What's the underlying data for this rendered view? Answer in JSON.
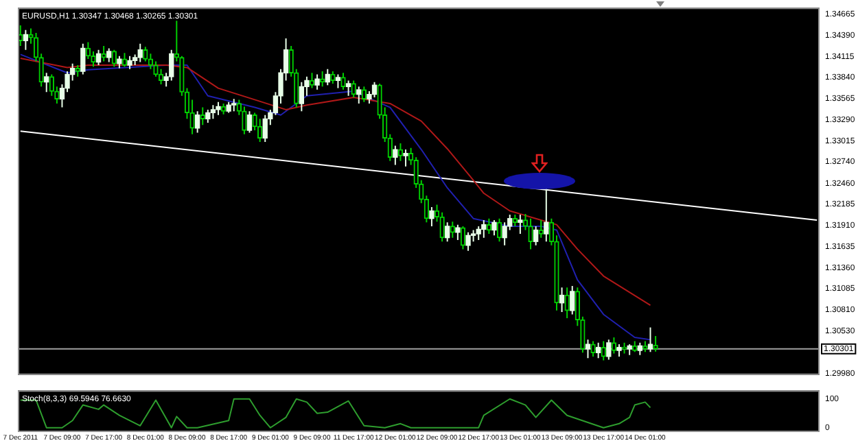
{
  "chart_data": [
    {
      "type": "candlestick",
      "title": "EURUSD,H1 1.30347 1.30468 1.30265 1.30301",
      "tick_labels": "y",
      "legend": false,
      "grid": false,
      "ylim": [
        1.2996,
        1.3475
      ],
      "yticks": [
        1.34665,
        {
          "value": 1.3439,
          "label": "1.34390"
        },
        1.34115,
        {
          "value": 1.3384,
          "label": "1.33840"
        },
        1.33565,
        {
          "value": 1.3329,
          "label": "1.33290"
        },
        1.33015,
        {
          "value": 1.3274,
          "label": "1.32740"
        },
        {
          "value": 1.3246,
          "label": "1.32460"
        },
        1.32185,
        {
          "value": 1.3191,
          "label": "1.31910"
        },
        1.31635,
        {
          "value": 1.3136,
          "label": "1.31360"
        },
        1.31085,
        {
          "value": 1.3081,
          "label": "1.30810"
        },
        {
          "value": 1.3053,
          "label": "1.30530"
        },
        {
          "value": 1.2998,
          "label": "1.29980"
        }
      ],
      "ohlc": [
        [
          1.344,
          1.3452,
          1.3425,
          1.3432
        ],
        [
          1.3432,
          1.3446,
          1.342,
          1.344
        ],
        [
          1.344,
          1.3448,
          1.3428,
          1.3436
        ],
        [
          1.3436,
          1.3442,
          1.3405,
          1.341
        ],
        [
          1.341,
          1.3415,
          1.3372,
          1.3378
        ],
        [
          1.3378,
          1.339,
          1.3365,
          1.3385
        ],
        [
          1.3385,
          1.3388,
          1.336,
          1.3366
        ],
        [
          1.3366,
          1.3372,
          1.335,
          1.3356
        ],
        [
          1.3356,
          1.3375,
          1.3345,
          1.337
        ],
        [
          1.337,
          1.3392,
          1.3365,
          1.3388
        ],
        [
          1.3388,
          1.3402,
          1.338,
          1.3396
        ],
        [
          1.3396,
          1.34,
          1.3385,
          1.3392
        ],
        [
          1.3392,
          1.3428,
          1.3388,
          1.3422
        ],
        [
          1.3422,
          1.343,
          1.3408,
          1.3412
        ],
        [
          1.3412,
          1.3418,
          1.3398,
          1.3404
        ],
        [
          1.3404,
          1.342,
          1.34,
          1.3415
        ],
        [
          1.3415,
          1.3425,
          1.3405,
          1.341
        ],
        [
          1.341,
          1.3422,
          1.3404,
          1.3418
        ],
        [
          1.3418,
          1.342,
          1.3398,
          1.3402
        ],
        [
          1.3402,
          1.3412,
          1.3396,
          1.3408
        ],
        [
          1.3408,
          1.3416,
          1.3398,
          1.34
        ],
        [
          1.34,
          1.3412,
          1.3395,
          1.3406
        ],
        [
          1.3406,
          1.3414,
          1.34,
          1.341
        ],
        [
          1.341,
          1.3428,
          1.3404,
          1.342
        ],
        [
          1.342,
          1.3424,
          1.3405,
          1.3408
        ],
        [
          1.3408,
          1.3415,
          1.3395,
          1.34
        ],
        [
          1.34,
          1.3405,
          1.3385,
          1.3388
        ],
        [
          1.3388,
          1.3395,
          1.3375,
          1.338
        ],
        [
          1.338,
          1.339,
          1.3372,
          1.3385
        ],
        [
          1.3385,
          1.342,
          1.338,
          1.3415
        ],
        [
          1.3415,
          1.3458,
          1.3405,
          1.341
        ],
        [
          1.341,
          1.3412,
          1.336,
          1.3365
        ],
        [
          1.3365,
          1.337,
          1.333,
          1.3338
        ],
        [
          1.3338,
          1.3355,
          1.331,
          1.3318
        ],
        [
          1.3318,
          1.334,
          1.3312,
          1.3335
        ],
        [
          1.3335,
          1.3345,
          1.3322,
          1.333
        ],
        [
          1.333,
          1.3342,
          1.3325,
          1.3338
        ],
        [
          1.3338,
          1.3348,
          1.333,
          1.3342
        ],
        [
          1.3342,
          1.3352,
          1.3335,
          1.3346
        ],
        [
          1.3346,
          1.335,
          1.3336,
          1.334
        ],
        [
          1.334,
          1.3352,
          1.3338,
          1.3348
        ],
        [
          1.3348,
          1.3356,
          1.334,
          1.335
        ],
        [
          1.335,
          1.3355,
          1.3335,
          1.334
        ],
        [
          1.334,
          1.3346,
          1.331,
          1.3315
        ],
        [
          1.3315,
          1.334,
          1.3312,
          1.3335
        ],
        [
          1.3335,
          1.3338,
          1.3315,
          1.332
        ],
        [
          1.332,
          1.333,
          1.33,
          1.3305
        ],
        [
          1.3305,
          1.3335,
          1.33,
          1.333
        ],
        [
          1.333,
          1.3342,
          1.3322,
          1.3338
        ],
        [
          1.3338,
          1.3365,
          1.3335,
          1.336
        ],
        [
          1.336,
          1.3395,
          1.335,
          1.339
        ],
        [
          1.339,
          1.3435,
          1.338,
          1.342
        ],
        [
          1.342,
          1.3425,
          1.3385,
          1.339
        ],
        [
          1.339,
          1.3395,
          1.3345,
          1.335
        ],
        [
          1.335,
          1.3378,
          1.334,
          1.3372
        ],
        [
          1.3372,
          1.3385,
          1.336,
          1.338
        ],
        [
          1.338,
          1.339,
          1.337,
          1.3374
        ],
        [
          1.3374,
          1.3388,
          1.3368,
          1.3382
        ],
        [
          1.3382,
          1.3392,
          1.3372,
          1.3378
        ],
        [
          1.3378,
          1.3395,
          1.3374,
          1.3388
        ],
        [
          1.3388,
          1.3392,
          1.3376,
          1.338
        ],
        [
          1.338,
          1.3388,
          1.337,
          1.3384
        ],
        [
          1.3384,
          1.339,
          1.3368,
          1.3372
        ],
        [
          1.3372,
          1.338,
          1.336,
          1.3376
        ],
        [
          1.3376,
          1.338,
          1.3358,
          1.3362
        ],
        [
          1.3362,
          1.3372,
          1.335,
          1.3368
        ],
        [
          1.3368,
          1.3372,
          1.3352,
          1.3356
        ],
        [
          1.3356,
          1.3366,
          1.335,
          1.3362
        ],
        [
          1.3362,
          1.3378,
          1.3358,
          1.3374
        ],
        [
          1.3374,
          1.3376,
          1.333,
          1.3335
        ],
        [
          1.3335,
          1.3345,
          1.33,
          1.3305
        ],
        [
          1.3305,
          1.331,
          1.3275,
          1.328
        ],
        [
          1.328,
          1.3295,
          1.327,
          1.329
        ],
        [
          1.329,
          1.3298,
          1.3275,
          1.3282
        ],
        [
          1.3282,
          1.329,
          1.3268,
          1.3285
        ],
        [
          1.3285,
          1.3292,
          1.327,
          1.3276
        ],
        [
          1.3276,
          1.328,
          1.324,
          1.3245
        ],
        [
          1.3245,
          1.325,
          1.322,
          1.3225
        ],
        [
          1.3225,
          1.323,
          1.3195,
          1.32
        ],
        [
          1.32,
          1.3215,
          1.319,
          1.321
        ],
        [
          1.321,
          1.3218,
          1.3196,
          1.3202
        ],
        [
          1.3202,
          1.3208,
          1.317,
          1.3175
        ],
        [
          1.3175,
          1.3195,
          1.317,
          1.319
        ],
        [
          1.319,
          1.3196,
          1.3175,
          1.3182
        ],
        [
          1.3182,
          1.3192,
          1.3172,
          1.3188
        ],
        [
          1.3188,
          1.319,
          1.316,
          1.3165
        ],
        [
          1.3165,
          1.3182,
          1.3158,
          1.3178
        ],
        [
          1.3178,
          1.3185,
          1.317,
          1.318
        ],
        [
          1.318,
          1.319,
          1.3172,
          1.3186
        ],
        [
          1.3186,
          1.3198,
          1.3175,
          1.3192
        ],
        [
          1.3192,
          1.32,
          1.318,
          1.3185
        ],
        [
          1.3185,
          1.3198,
          1.3178,
          1.3195
        ],
        [
          1.3195,
          1.32,
          1.317,
          1.3175
        ],
        [
          1.3175,
          1.3195,
          1.3165,
          1.319
        ],
        [
          1.319,
          1.3205,
          1.3185,
          1.32
        ],
        [
          1.32,
          1.3205,
          1.319,
          1.3195
        ],
        [
          1.3195,
          1.3205,
          1.318,
          1.3198
        ],
        [
          1.3198,
          1.3206,
          1.3185,
          1.319
        ],
        [
          1.319,
          1.32,
          1.316,
          1.317
        ],
        [
          1.317,
          1.319,
          1.3165,
          1.3185
        ],
        [
          1.3185,
          1.3198,
          1.3175,
          1.318
        ],
        [
          1.318,
          1.324,
          1.317,
          1.3195
        ],
        [
          1.3195,
          1.32,
          1.3165,
          1.317
        ],
        [
          1.317,
          1.3178,
          1.308,
          1.309
        ],
        [
          1.309,
          1.311,
          1.3078,
          1.31
        ],
        [
          1.31,
          1.311,
          1.307,
          1.308
        ],
        [
          1.308,
          1.3112,
          1.3075,
          1.3105
        ],
        [
          1.3105,
          1.311,
          1.306,
          1.3068
        ],
        [
          1.3068,
          1.3072,
          1.3025,
          1.303
        ],
        [
          1.303,
          1.3042,
          1.3018,
          1.3036
        ],
        [
          1.3036,
          1.304,
          1.302,
          1.3025
        ],
        [
          1.3025,
          1.3038,
          1.3018,
          1.3032
        ],
        [
          1.3032,
          1.304,
          1.3015,
          1.302
        ],
        [
          1.302,
          1.3042,
          1.3016,
          1.3038
        ],
        [
          1.3038,
          1.3045,
          1.3024,
          1.3028
        ],
        [
          1.3028,
          1.3036,
          1.302,
          1.3032
        ],
        [
          1.3032,
          1.3038,
          1.3024,
          1.303
        ],
        [
          1.303,
          1.3036,
          1.3022,
          1.3034
        ],
        [
          1.3034,
          1.304,
          1.3026,
          1.3028
        ],
        [
          1.3028,
          1.3038,
          1.3022,
          1.3034
        ],
        [
          1.3034,
          1.304,
          1.3026,
          1.303
        ],
        [
          1.303,
          1.3058,
          1.3026,
          1.3036
        ],
        [
          1.30347,
          1.30468,
          1.30265,
          1.30301
        ],
        null,
        null,
        null,
        null,
        null,
        null,
        null,
        null,
        null,
        null,
        null,
        null,
        null,
        null,
        null,
        null,
        null,
        null,
        null,
        null,
        null,
        null,
        null,
        null,
        null,
        null,
        null,
        null,
        null,
        null,
        null
      ],
      "series": [
        {
          "type": "line",
          "color": "#b01818",
          "values": [
            1.3409,
            null,
            null,
            null,
            null,
            null,
            null,
            null,
            null,
            1.3397,
            null,
            null,
            null,
            1.34,
            null,
            null,
            null,
            null,
            null,
            null,
            null,
            null,
            null,
            null,
            null,
            null,
            null,
            null,
            1.34,
            null,
            null,
            null,
            1.3397,
            null,
            null,
            null,
            null,
            null,
            1.337,
            null,
            null,
            null,
            null,
            null,
            null,
            1.3355,
            null,
            null,
            null,
            null,
            null,
            1.3342,
            null,
            null,
            null,
            1.3348,
            null,
            null,
            null,
            null,
            null,
            null,
            null,
            null,
            1.3358,
            null,
            null,
            null,
            null,
            null,
            null,
            1.335,
            null,
            null,
            null,
            null,
            null,
            1.3327,
            null,
            null,
            null,
            null,
            1.3291,
            null,
            null,
            null,
            null,
            1.325,
            null,
            1.3233,
            null,
            null,
            null,
            null,
            1.321,
            null,
            null,
            null,
            null,
            1.32,
            null,
            null,
            null,
            1.3192,
            null,
            null,
            null,
            1.316,
            null,
            null,
            null,
            null,
            1.3125,
            null,
            null,
            null,
            null,
            null,
            null,
            null,
            null,
            1.3087,
            null,
            null,
            null,
            null,
            null,
            null,
            null,
            null,
            null,
            null,
            null,
            null,
            null,
            null,
            null,
            null,
            null,
            null,
            null,
            null,
            null,
            null,
            null,
            null,
            null,
            null,
            null,
            null,
            null,
            null,
            null,
            null
          ]
        },
        {
          "type": "line",
          "color": "#2020b0",
          "values": [
            1.3414,
            null,
            null,
            null,
            null,
            null,
            null,
            null,
            null,
            1.339,
            null,
            null,
            null,
            1.3394,
            null,
            null,
            null,
            null,
            null,
            null,
            null,
            null,
            null,
            null,
            null,
            null,
            null,
            null,
            1.34,
            null,
            null,
            null,
            1.34,
            null,
            null,
            null,
            1.336,
            null,
            null,
            null,
            null,
            null,
            null,
            null,
            null,
            1.3345,
            null,
            null,
            null,
            null,
            1.3335,
            null,
            null,
            null,
            null,
            1.336,
            null,
            null,
            null,
            null,
            null,
            null,
            null,
            null,
            1.3366,
            null,
            null,
            null,
            null,
            null,
            null,
            1.3345,
            null,
            null,
            null,
            null,
            null,
            1.329,
            null,
            null,
            null,
            null,
            1.324,
            null,
            null,
            null,
            null,
            1.32,
            null,
            null,
            null,
            null,
            null,
            null,
            1.319,
            null,
            null,
            null,
            null,
            null,
            1.319,
            null,
            null,
            1.3185,
            null,
            null,
            null,
            1.312,
            null,
            null,
            null,
            null,
            1.3075,
            null,
            null,
            null,
            null,
            null,
            1.3045,
            null,
            null,
            1.3042,
            null,
            null,
            null,
            null,
            null,
            null,
            null,
            null,
            null,
            null,
            null,
            null,
            null,
            null,
            null,
            null,
            null,
            null,
            null,
            null,
            null,
            null,
            null,
            null,
            null,
            null,
            null,
            null,
            null,
            null,
            null,
            null
          ]
        },
        {
          "type": "line",
          "color": "#ffffff",
          "values": [
            1.3314,
            null,
            null,
            null,
            null,
            null,
            null,
            null,
            null,
            null,
            null,
            null,
            null,
            null,
            null,
            null,
            null,
            null,
            null,
            null,
            null,
            null,
            null,
            null,
            null,
            null,
            null,
            null,
            null,
            null,
            null,
            null,
            null,
            null,
            null,
            null,
            null,
            null,
            null,
            null,
            null,
            null,
            null,
            null,
            null,
            null,
            null,
            null,
            null,
            null,
            null,
            null,
            null,
            null,
            null,
            null,
            null,
            null,
            null,
            null,
            null,
            null,
            null,
            null,
            null,
            null,
            null,
            null,
            null,
            null,
            null,
            null,
            null,
            null,
            null,
            null,
            null,
            null,
            null,
            null,
            null,
            null,
            null,
            null,
            null,
            null,
            null,
            null,
            null,
            null,
            null,
            null,
            null,
            null,
            null,
            null,
            null,
            null,
            null,
            null,
            null,
            null,
            null,
            null,
            null,
            null,
            null,
            null,
            null,
            null,
            null,
            null,
            null,
            null,
            null,
            null,
            null,
            null,
            null,
            null,
            null,
            null,
            null,
            null,
            null,
            null,
            null,
            null,
            null,
            null,
            null,
            null,
            null,
            null,
            null,
            null,
            null,
            null,
            null,
            null,
            null,
            null,
            null,
            null,
            null,
            null,
            null,
            null,
            null,
            null,
            null,
            null,
            null,
            1.3198
          ]
        }
      ],
      "ref_lines": [
        {
          "axis": "y",
          "value": 1.30301,
          "label": "1.30301",
          "color": "#a0a0a0"
        }
      ]
    },
    {
      "type": "line",
      "title": "Stoch(8,3,3) 69.5946 76.6630",
      "legend": false,
      "grid": false,
      "ylim": [
        -15,
        130
      ],
      "yticks": [
        0,
        100
      ],
      "categories": [
        "7 Dec 2011",
        null,
        null,
        null,
        null,
        null,
        null,
        null,
        "7 Dec 09:00",
        null,
        null,
        null,
        null,
        null,
        null,
        null,
        "7 Dec 17:00",
        null,
        null,
        null,
        null,
        null,
        null,
        null,
        "8 Dec 01:00",
        null,
        null,
        null,
        null,
        null,
        null,
        null,
        "8 Dec 09:00",
        null,
        null,
        null,
        null,
        null,
        null,
        null,
        "8 Dec 17:00",
        null,
        null,
        null,
        null,
        null,
        null,
        null,
        "9 Dec 01:00",
        null,
        null,
        null,
        null,
        null,
        null,
        null,
        "9 Dec 09:00",
        null,
        null,
        null,
        null,
        null,
        null,
        null,
        "11 Dec 17:00",
        null,
        null,
        null,
        null,
        null,
        null,
        null,
        "12 Dec 01:00",
        null,
        null,
        null,
        null,
        null,
        null,
        null,
        "12 Dec 09:00",
        null,
        null,
        null,
        null,
        null,
        null,
        null,
        "12 Dec 17:00",
        null,
        null,
        null,
        null,
        null,
        null,
        null,
        "13 Dec 01:00",
        null,
        null,
        null,
        null,
        null,
        null,
        null,
        "13 Dec 09:00",
        null,
        null,
        null,
        null,
        null,
        null,
        null,
        "13 Dec 17:00",
        null,
        null,
        null,
        null,
        null,
        null,
        null,
        "14 Dec 01:00",
        null,
        null,
        null,
        null,
        null,
        null,
        null,
        null,
        null,
        null,
        null,
        null,
        null,
        null,
        null,
        null,
        null,
        null,
        null,
        null,
        null,
        null,
        null,
        null,
        null,
        null,
        null,
        null,
        null,
        null,
        null,
        null,
        null
      ],
      "series": [
        {
          "color": "#2e9e2e",
          "values": [
            96,
            null,
            null,
            96,
            null,
            0,
            null,
            null,
            0,
            null,
            25,
            null,
            79,
            null,
            null,
            64,
            79,
            null,
            null,
            43,
            null,
            null,
            null,
            7,
            null,
            null,
            96,
            null,
            null,
            0,
            39,
            null,
            0,
            null,
            0,
            null,
            null,
            null,
            null,
            null,
            25,
            100,
            null,
            null,
            100,
            null,
            43,
            null,
            0,
            null,
            null,
            36,
            null,
            100,
            null,
            89,
            null,
            50,
            null,
            54,
            null,
            null,
            null,
            93,
            null,
            null,
            7,
            null,
            null,
            null,
            0,
            null,
            null,
            14,
            null,
            0,
            null,
            null,
            null,
            null,
            0,
            null,
            0,
            null,
            null,
            null,
            null,
            null,
            0,
            43,
            null,
            null,
            null,
            null,
            100,
            null,
            null,
            79,
            null,
            36,
            null,
            null,
            96,
            null,
            null,
            43,
            null,
            null,
            null,
            null,
            null,
            null,
            0,
            null,
            null,
            14,
            null,
            36,
            79,
            null,
            89,
            70,
            null,
            null,
            null,
            null,
            null,
            null,
            null,
            null,
            null,
            null,
            null,
            null,
            null,
            null,
            null,
            null,
            null,
            null,
            null,
            null,
            null,
            null,
            null,
            null,
            null,
            null,
            null,
            null,
            null,
            null,
            null,
            null
          ]
        }
      ]
    }
  ]
}
